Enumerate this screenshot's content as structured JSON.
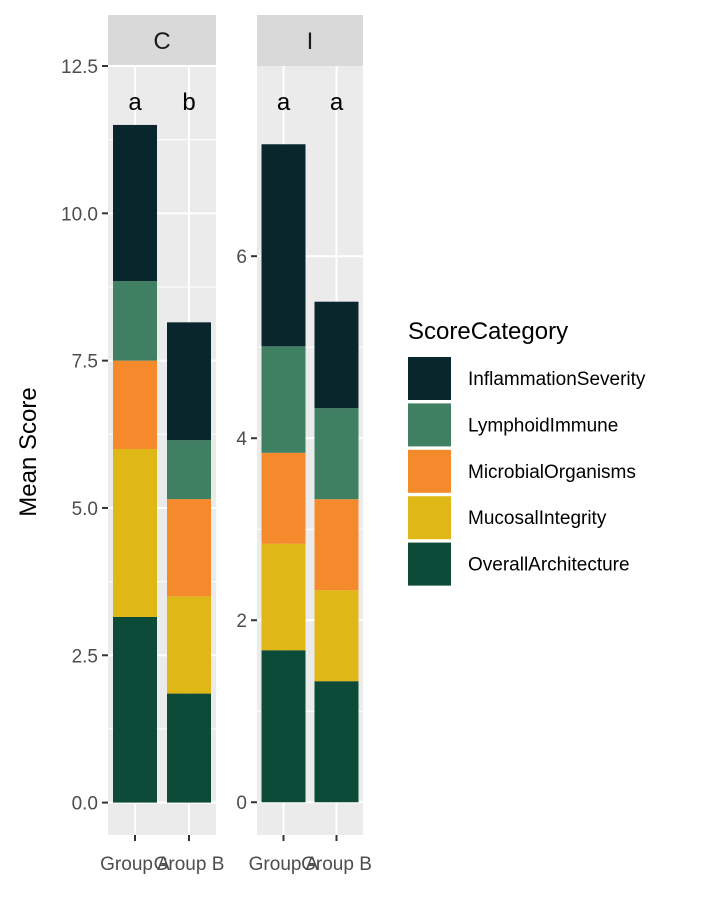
{
  "chart_data": {
    "type": "bar",
    "stacked": true,
    "ylabel": "Mean Score",
    "xlabel": "",
    "categories": [
      "Group A",
      "Group B"
    ],
    "legend": {
      "title": "ScoreCategory",
      "position": "right",
      "items": [
        {
          "label": "InflammationSeverity",
          "color": "#0a262d"
        },
        {
          "label": "LymphoidImmune",
          "color": "#3f7f62"
        },
        {
          "label": "MicrobialOrganisms",
          "color": "#f58a2c"
        },
        {
          "label": "MucosalIntegrity",
          "color": "#dfb716"
        },
        {
          "label": "OverallArchitecture",
          "color": "#0c4b37"
        }
      ]
    },
    "stack_order": [
      "OverallArchitecture",
      "MucosalIntegrity",
      "MicrobialOrganisms",
      "LymphoidImmune",
      "InflammationSeverity"
    ],
    "panels": [
      {
        "facet": "C",
        "ylim": [
          -0.55,
          12.5
        ],
        "yticks": [
          0.0,
          2.5,
          5.0,
          7.5,
          10.0,
          12.5
        ],
        "ytick_labels": [
          "0.0",
          "2.5",
          "5.0",
          "7.5",
          "10.0",
          "12.5"
        ],
        "significance_letters": [
          "a",
          "b"
        ],
        "series": [
          {
            "name": "OverallArchitecture",
            "values": [
              3.15,
              1.85
            ]
          },
          {
            "name": "MucosalIntegrity",
            "values": [
              2.85,
              1.65
            ]
          },
          {
            "name": "MicrobialOrganisms",
            "values": [
              1.5,
              1.65
            ]
          },
          {
            "name": "LymphoidImmune",
            "values": [
              1.35,
              1.0
            ]
          },
          {
            "name": "InflammationSeverity",
            "values": [
              2.65,
              2.0
            ]
          }
        ]
      },
      {
        "facet": "I",
        "ylim": [
          -0.36,
          8.09
        ],
        "yticks": [
          0,
          2,
          4,
          6
        ],
        "ytick_labels": [
          "0",
          "2",
          "4",
          "6"
        ],
        "significance_letters": [
          "a",
          "a"
        ],
        "series": [
          {
            "name": "OverallArchitecture",
            "values": [
              1.67,
              1.33
            ]
          },
          {
            "name": "MucosalIntegrity",
            "values": [
              1.17,
              1.0
            ]
          },
          {
            "name": "MicrobialOrganisms",
            "values": [
              1.0,
              1.0
            ]
          },
          {
            "name": "LymphoidImmune",
            "values": [
              1.17,
              1.0
            ]
          },
          {
            "name": "InflammationSeverity",
            "values": [
              2.22,
              1.17
            ]
          }
        ]
      }
    ]
  }
}
